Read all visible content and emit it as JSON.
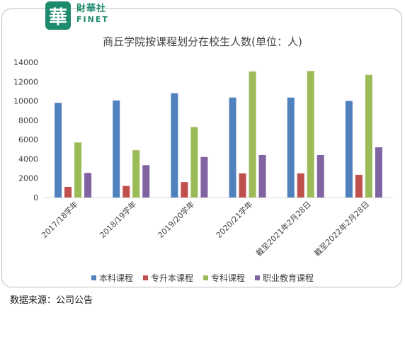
{
  "logo": {
    "seal_char": "華",
    "name_cn": "財華社",
    "name_en": "FINET"
  },
  "source_note": "数据来源：公司公告",
  "chart_data": {
    "type": "bar",
    "title": "商丘学院按课程划分在校生人数(单位：人)",
    "categories": [
      "2017/18学年",
      "2018/19学年",
      "2019/20学年",
      "2020/21学年",
      "截至2021年2月28日",
      "截至2022年2月28日"
    ],
    "ylim": [
      0,
      14000
    ],
    "yticks": [
      0,
      2000,
      4000,
      6000,
      8000,
      10000,
      12000,
      14000
    ],
    "legend_position": "bottom",
    "grid": false,
    "series": [
      {
        "name": "本科课程",
        "color": "#4f81bd",
        "values": [
          9800,
          10050,
          10800,
          10350,
          10350,
          10000
        ]
      },
      {
        "name": "专升本课程",
        "color": "#c0504d",
        "values": [
          1100,
          1200,
          1600,
          2500,
          2500,
          2350
        ]
      },
      {
        "name": "专科课程",
        "color": "#9bbb59",
        "values": [
          5700,
          4900,
          7300,
          13050,
          13100,
          12700
        ]
      },
      {
        "name": "职业教育课程",
        "color": "#8064a2",
        "values": [
          2550,
          3350,
          4200,
          4400,
          4400,
          5200
        ]
      }
    ]
  }
}
